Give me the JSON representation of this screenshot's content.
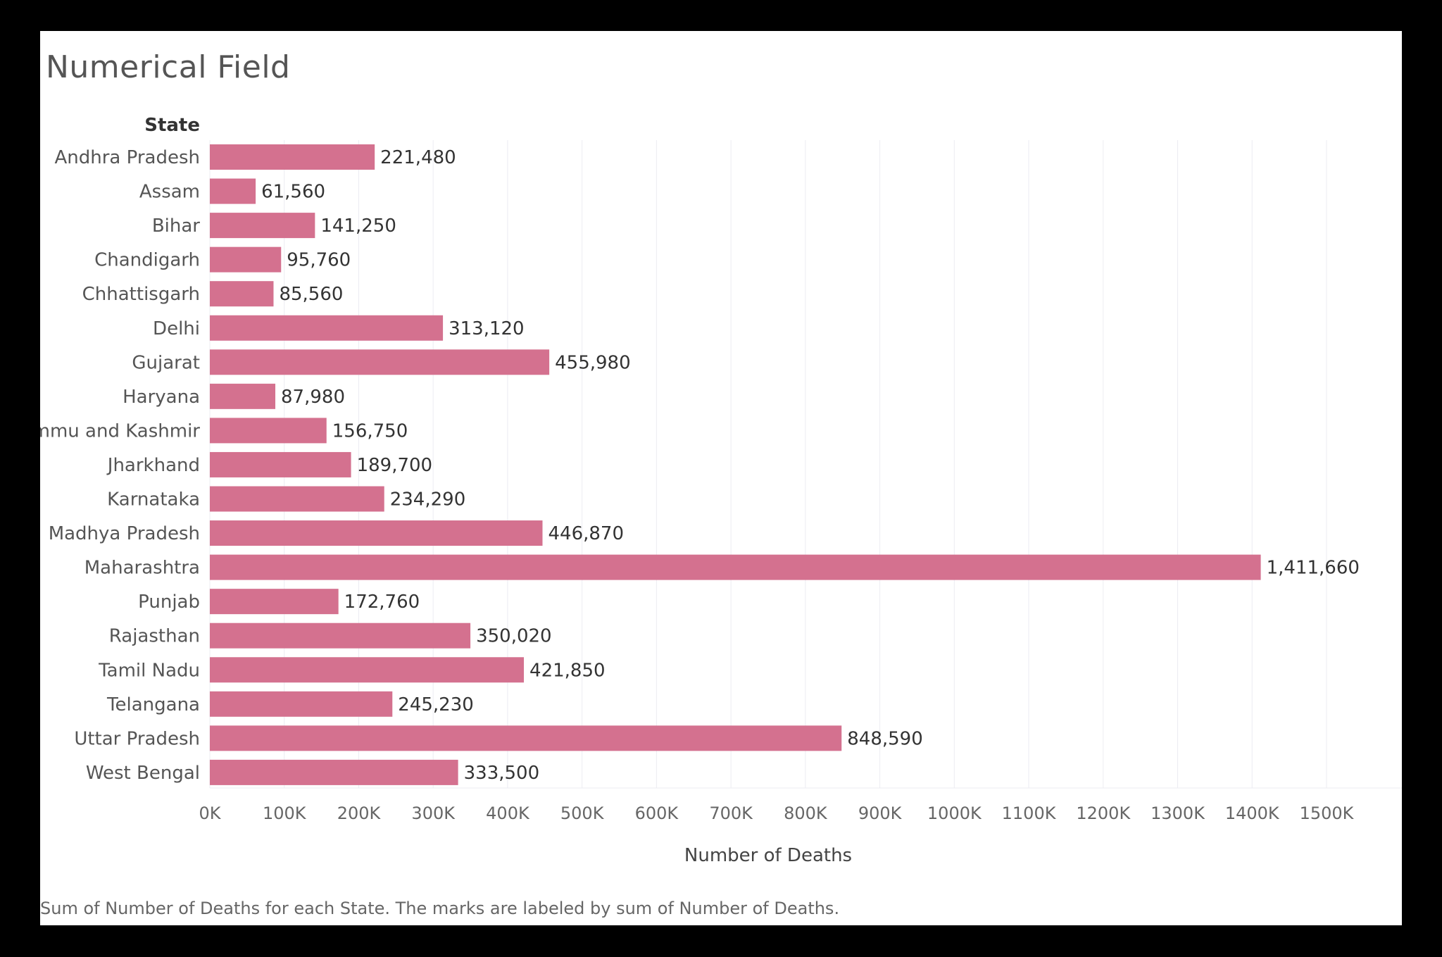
{
  "page": {
    "title": "Numerical Field",
    "caption": "Sum of Number of Deaths for each State.  The marks are labeled by sum of Number of Deaths."
  },
  "chart_data": {
    "type": "bar",
    "orientation": "horizontal",
    "row_header": "State",
    "xlabel": "Number of Deaths",
    "categories": [
      "Andhra Pradesh",
      "Assam",
      "Bihar",
      "Chandigarh",
      "Chhattisgarh",
      "Delhi",
      "Gujarat",
      "Haryana",
      "Jammu and Kashmir",
      "Jharkhand",
      "Karnataka",
      "Madhya Pradesh",
      "Maharashtra",
      "Punjab",
      "Rajasthan",
      "Tamil Nadu",
      "Telangana",
      "Uttar Pradesh",
      "West Bengal"
    ],
    "values": [
      221480,
      61560,
      141250,
      95760,
      85560,
      313120,
      455980,
      87980,
      156750,
      189700,
      234290,
      446870,
      1411660,
      172760,
      350020,
      421850,
      245230,
      848590,
      333500
    ],
    "value_labels": [
      "221,480",
      "61,560",
      "141,250",
      "95,760",
      "85,560",
      "313,120",
      "455,980",
      "87,980",
      "156,750",
      "189,700",
      "234,290",
      "446,870",
      "1,411,660",
      "172,760",
      "350,020",
      "421,850",
      "245,230",
      "848,590",
      "333,500"
    ],
    "xlim": [
      0,
      1500000
    ],
    "xticks": [
      0,
      100000,
      200000,
      300000,
      400000,
      500000,
      600000,
      700000,
      800000,
      900000,
      1000000,
      1100000,
      1200000,
      1300000,
      1400000,
      1500000
    ],
    "xtick_labels": [
      "0K",
      "100K",
      "200K",
      "300K",
      "400K",
      "500K",
      "600K",
      "700K",
      "800K",
      "900K",
      "1000K",
      "1100K",
      "1200K",
      "1300K",
      "1400K",
      "1500K"
    ],
    "grid": "vertical",
    "colors": {
      "bar": "#d4718f",
      "grid": "#ececf2"
    }
  }
}
